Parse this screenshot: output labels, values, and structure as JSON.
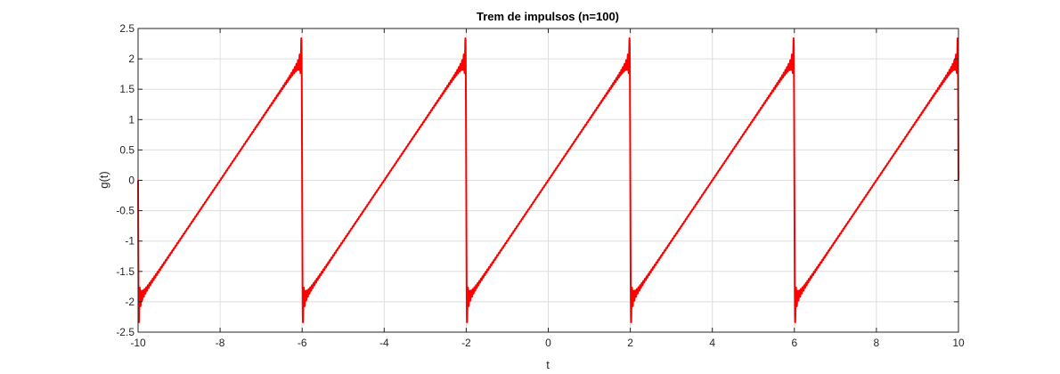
{
  "chart_data": {
    "type": "line",
    "title": "Trem de impulsos (n=100)",
    "xlabel": "t",
    "ylabel": "g(t)",
    "xlim": [
      -10,
      10
    ],
    "ylim": [
      -2.5,
      2.5
    ],
    "x_ticks": [
      -10,
      -8,
      -6,
      -4,
      -2,
      0,
      2,
      4,
      6,
      8,
      10
    ],
    "x_tick_labels": [
      "-10",
      "-8",
      "-6",
      "-4",
      "-2",
      "0",
      "2",
      "4",
      "6",
      "8",
      "10"
    ],
    "y_ticks": [
      -2.5,
      -2,
      -1.5,
      -1,
      -0.5,
      0,
      0.5,
      1,
      1.5,
      2,
      2.5
    ],
    "y_tick_labels": [
      "-2.5",
      "-2",
      "-1.5",
      "-1",
      "-0.5",
      "0",
      "0.5",
      "1",
      "1.5",
      "2",
      "2.5"
    ],
    "grid": true,
    "legend": "none",
    "series": [
      {
        "color": "#ff0000",
        "waveform": "sawtooth (Fourier series approximation, Gibbs ringing at jumps)",
        "period": 4,
        "amplitude": 2,
        "jump_positions": [
          -10,
          -6,
          -2,
          2,
          6,
          10
        ],
        "overshoot_peak": 2.33,
        "x": [
          -10,
          -9.96,
          -9.9,
          -6.1,
          -6.04,
          -6,
          -5.96,
          -5.9,
          -2.1,
          -2.04,
          -2,
          -1.96,
          -1.9,
          1.9,
          1.96,
          2,
          2.04,
          2.1,
          5.9,
          5.96,
          6,
          6.04,
          6.1,
          9.9,
          9.96,
          10
        ],
        "y": [
          0,
          -2.33,
          -1.95,
          1.95,
          2.33,
          0,
          -2.33,
          -1.95,
          1.95,
          2.33,
          0,
          -2.33,
          -1.95,
          1.95,
          2.33,
          0,
          -2.33,
          -1.95,
          1.95,
          2.33,
          0,
          -2.33,
          -1.95,
          1.95,
          2.33,
          0
        ]
      }
    ]
  }
}
